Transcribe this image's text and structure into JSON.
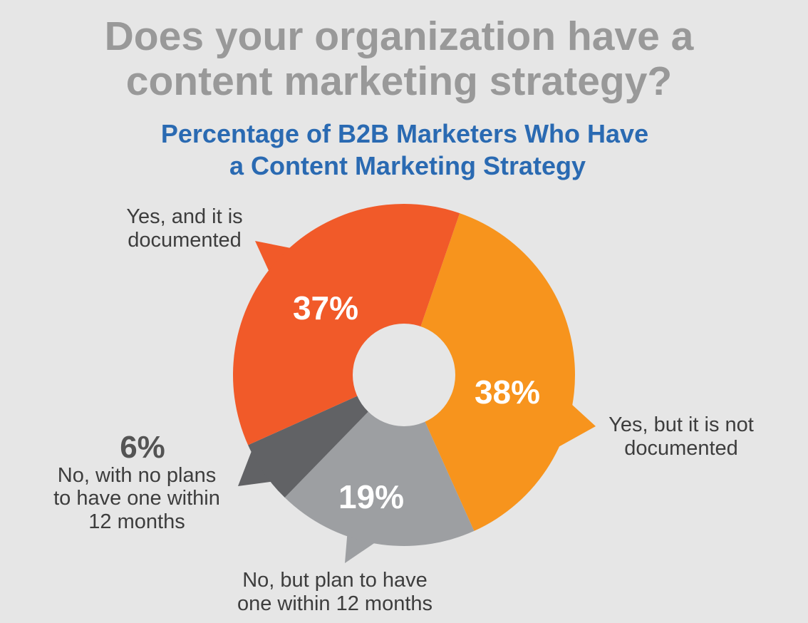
{
  "title_lines": [
    "Does your organization have a",
    "content marketing strategy?"
  ],
  "chart_data": {
    "type": "pie",
    "donut": true,
    "title_lines": [
      "Percentage of B2B Marketers Who Have",
      "a Content Marketing Strategy"
    ],
    "unit": "%",
    "slices": [
      {
        "label_lines": [
          "Yes, but it is not",
          "documented"
        ],
        "value": 38,
        "value_text": "38%",
        "color": "#f7941d"
      },
      {
        "label_lines": [
          "No, but plan to have",
          "one within 12 months"
        ],
        "value": 19,
        "value_text": "19%",
        "color": "#9d9fa2"
      },
      {
        "label_lines": [
          "No, with no plans",
          "to have one within",
          "12 months"
        ],
        "value": 6,
        "value_text": "6%",
        "color": "#616265"
      },
      {
        "label_lines": [
          "Yes, and it is",
          "documented"
        ],
        "value": 37,
        "value_text": "37%",
        "color": "#f15a29"
      }
    ]
  }
}
